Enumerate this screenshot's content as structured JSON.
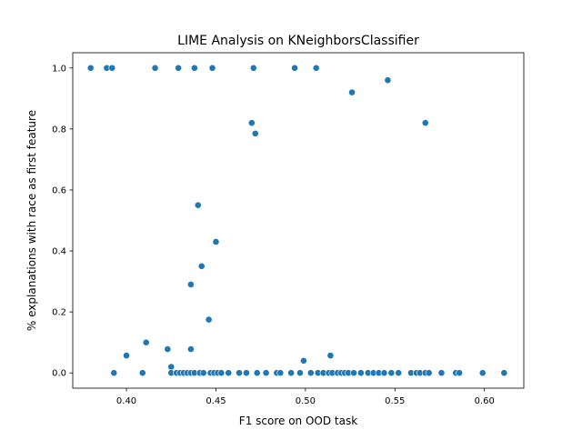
{
  "chart_data": {
    "type": "scatter",
    "title": "LIME Analysis on KNeighborsClassifier",
    "xlabel": "F1 score on OOD task",
    "ylabel": "% explanations with race as first feature",
    "xlim": [
      0.37,
      0.622
    ],
    "ylim": [
      -0.05,
      1.05
    ],
    "xticks": [
      {
        "value": 0.4,
        "label": "0.40"
      },
      {
        "value": 0.45,
        "label": "0.45"
      },
      {
        "value": 0.5,
        "label": "0.50"
      },
      {
        "value": 0.55,
        "label": "0.55"
      },
      {
        "value": 0.6,
        "label": "0.60"
      }
    ],
    "yticks": [
      {
        "value": 0.0,
        "label": "0.0"
      },
      {
        "value": 0.2,
        "label": "0.2"
      },
      {
        "value": 0.4,
        "label": "0.4"
      },
      {
        "value": 0.6,
        "label": "0.6"
      },
      {
        "value": 0.8,
        "label": "0.8"
      },
      {
        "value": 1.0,
        "label": "1.0"
      }
    ],
    "grid": false,
    "marker_color": "#1f77b4",
    "points": [
      {
        "x": 0.38,
        "y": 1.0
      },
      {
        "x": 0.389,
        "y": 1.0
      },
      {
        "x": 0.392,
        "y": 1.0
      },
      {
        "x": 0.416,
        "y": 1.0
      },
      {
        "x": 0.429,
        "y": 1.0
      },
      {
        "x": 0.438,
        "y": 1.0
      },
      {
        "x": 0.448,
        "y": 1.0
      },
      {
        "x": 0.471,
        "y": 1.0
      },
      {
        "x": 0.494,
        "y": 1.0
      },
      {
        "x": 0.506,
        "y": 1.0
      },
      {
        "x": 0.526,
        "y": 0.92
      },
      {
        "x": 0.546,
        "y": 0.96
      },
      {
        "x": 0.47,
        "y": 0.82
      },
      {
        "x": 0.472,
        "y": 0.785
      },
      {
        "x": 0.567,
        "y": 0.82
      },
      {
        "x": 0.44,
        "y": 0.55
      },
      {
        "x": 0.45,
        "y": 0.43
      },
      {
        "x": 0.442,
        "y": 0.35
      },
      {
        "x": 0.436,
        "y": 0.29
      },
      {
        "x": 0.446,
        "y": 0.175
      },
      {
        "x": 0.411,
        "y": 0.1
      },
      {
        "x": 0.4,
        "y": 0.057
      },
      {
        "x": 0.423,
        "y": 0.078
      },
      {
        "x": 0.436,
        "y": 0.078
      },
      {
        "x": 0.425,
        "y": 0.02
      },
      {
        "x": 0.499,
        "y": 0.04
      },
      {
        "x": 0.514,
        "y": 0.057
      },
      {
        "x": 0.393,
        "y": 0.0
      },
      {
        "x": 0.409,
        "y": 0.0
      },
      {
        "x": 0.425,
        "y": 0.0
      },
      {
        "x": 0.428,
        "y": 0.0
      },
      {
        "x": 0.43,
        "y": 0.0
      },
      {
        "x": 0.432,
        "y": 0.0
      },
      {
        "x": 0.434,
        "y": 0.0
      },
      {
        "x": 0.436,
        "y": 0.0
      },
      {
        "x": 0.438,
        "y": 0.0
      },
      {
        "x": 0.441,
        "y": 0.0
      },
      {
        "x": 0.443,
        "y": 0.0
      },
      {
        "x": 0.447,
        "y": 0.0
      },
      {
        "x": 0.449,
        "y": 0.0
      },
      {
        "x": 0.451,
        "y": 0.0
      },
      {
        "x": 0.453,
        "y": 0.0
      },
      {
        "x": 0.457,
        "y": 0.0
      },
      {
        "x": 0.463,
        "y": 0.0
      },
      {
        "x": 0.467,
        "y": 0.0
      },
      {
        "x": 0.473,
        "y": 0.0
      },
      {
        "x": 0.478,
        "y": 0.0
      },
      {
        "x": 0.484,
        "y": 0.0
      },
      {
        "x": 0.486,
        "y": 0.0
      },
      {
        "x": 0.492,
        "y": 0.0
      },
      {
        "x": 0.497,
        "y": 0.0
      },
      {
        "x": 0.503,
        "y": 0.0
      },
      {
        "x": 0.507,
        "y": 0.0
      },
      {
        "x": 0.51,
        "y": 0.0
      },
      {
        "x": 0.513,
        "y": 0.0
      },
      {
        "x": 0.515,
        "y": 0.0
      },
      {
        "x": 0.518,
        "y": 0.0
      },
      {
        "x": 0.52,
        "y": 0.0
      },
      {
        "x": 0.522,
        "y": 0.0
      },
      {
        "x": 0.524,
        "y": 0.0
      },
      {
        "x": 0.527,
        "y": 0.0
      },
      {
        "x": 0.531,
        "y": 0.0
      },
      {
        "x": 0.535,
        "y": 0.0
      },
      {
        "x": 0.538,
        "y": 0.0
      },
      {
        "x": 0.541,
        "y": 0.0
      },
      {
        "x": 0.544,
        "y": 0.0
      },
      {
        "x": 0.548,
        "y": 0.0
      },
      {
        "x": 0.552,
        "y": 0.0
      },
      {
        "x": 0.559,
        "y": 0.0
      },
      {
        "x": 0.562,
        "y": 0.0
      },
      {
        "x": 0.564,
        "y": 0.0
      },
      {
        "x": 0.567,
        "y": 0.0
      },
      {
        "x": 0.569,
        "y": 0.0
      },
      {
        "x": 0.576,
        "y": 0.0
      },
      {
        "x": 0.584,
        "y": 0.0
      },
      {
        "x": 0.586,
        "y": 0.0
      },
      {
        "x": 0.599,
        "y": 0.0
      },
      {
        "x": 0.611,
        "y": 0.0
      }
    ]
  }
}
